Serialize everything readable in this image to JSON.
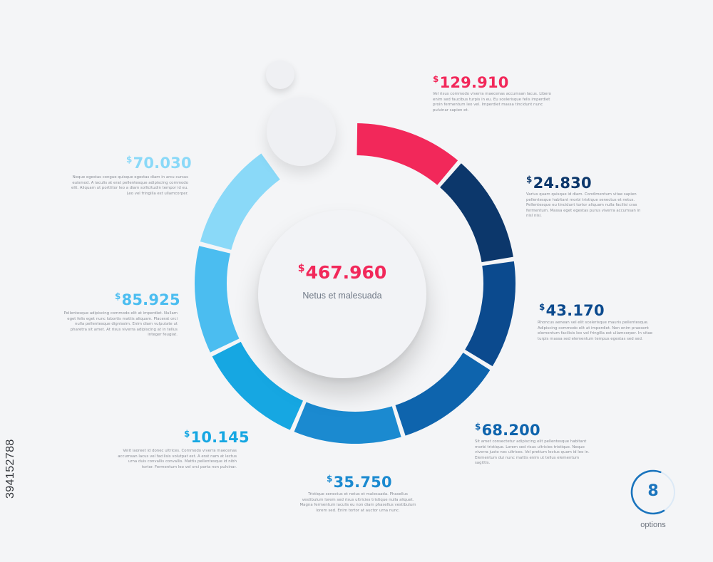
{
  "chart_data": {
    "type": "donut",
    "total": {
      "currency": "$",
      "value": "467.960"
    },
    "subtitle": "Netus et malesuada",
    "segments": [
      {
        "currency": "$",
        "value": "129.910",
        "color": "#f2285a",
        "description": "Vel risus commodo viverra maecenas accumsan lacus. Libero enim sed faucibus turpis in eu. Eu scelerisque felis imperdiet proin fermentum leo vel. Imperdiet massa tincidunt nunc pulvinar sapien et."
      },
      {
        "currency": "$",
        "value": "24.830",
        "color": "#0c376b",
        "description": "Varius quam quisque id diam. Condimentum vitae sapien pellentesque habitant morbi tristique senectus et netus. Pellentesque eu tincidunt tortor aliquam nulla facilisi cras fermentum. Massa eget egestas purus viverra accumsan in nisl nisi."
      },
      {
        "currency": "$",
        "value": "43.170",
        "color": "#0b4a8e",
        "description": "Rhoncus aenean vel elit scelerisque mauris pellentesque. Adipiscing commodo elit at imperdiet. Non enim praesent elementum facilisis leo vel fringilla est ullamcorper. In vitae turpis massa sed elementum tempus egestas sed sed."
      },
      {
        "currency": "$",
        "value": "68.200",
        "color": "#0e64ad",
        "description": "Sit amet consectetur adipiscing elit pellentesque habitant morbi tristique. Lorem sed risus ultricies tristique. Neque viverra justo nec ultrices. Vel pretium lectus quam id leo in. Elementum dui nunc mattis enim ut tellus elementum sagittis."
      },
      {
        "currency": "$",
        "value": "35.750",
        "color": "#1b8ad0",
        "description": "Tristique senectus et netus et malesuada. Phasellus vestibulum lorem sed risus ultricies tristique nulla aliquet. Magna fermentum iaculis eu non diam phasellus vestibulum lorem sed. Enim tortor at auctor urna nunc."
      },
      {
        "currency": "$",
        "value": "10.145",
        "color": "#16a7e2",
        "description": "Velit laoreet id donec ultrices. Commodo viverra maecenas accumsan lacus vel facilisis volutpat est. A erat nam at lectus urna duis convallis convallis. Mattis pellentesque id nibh tortor. Fermentum leo vel orci porta non pulvinar."
      },
      {
        "currency": "$",
        "value": "85.925",
        "color": "#4bbdf0",
        "description": "Pellentesque adipiscing commodo elit at imperdiet. Nullam eget felis eget nunc lobortis mattis aliquam. Placerat orci nulla pellentesque dignissim. Enim diam vulputate ut pharetra sit amet. At risus viverra adipiscing at in tellus integer feugiat."
      },
      {
        "currency": "$",
        "value": "70.030",
        "color": "#8ad9f8",
        "description": "Neque egestas congue quisque egestas diam in arcu cursus euismod. A iaculis at erat pellentesque adipiscing commodo elit. Aliquam ut porttitor leo a diam sollicitudin tempor id eu. Leo vel fringilla est ullamcorper."
      }
    ]
  },
  "options_badge": {
    "number": "8",
    "label": "options",
    "color": "#1a74bd"
  },
  "watermark": "394152788"
}
